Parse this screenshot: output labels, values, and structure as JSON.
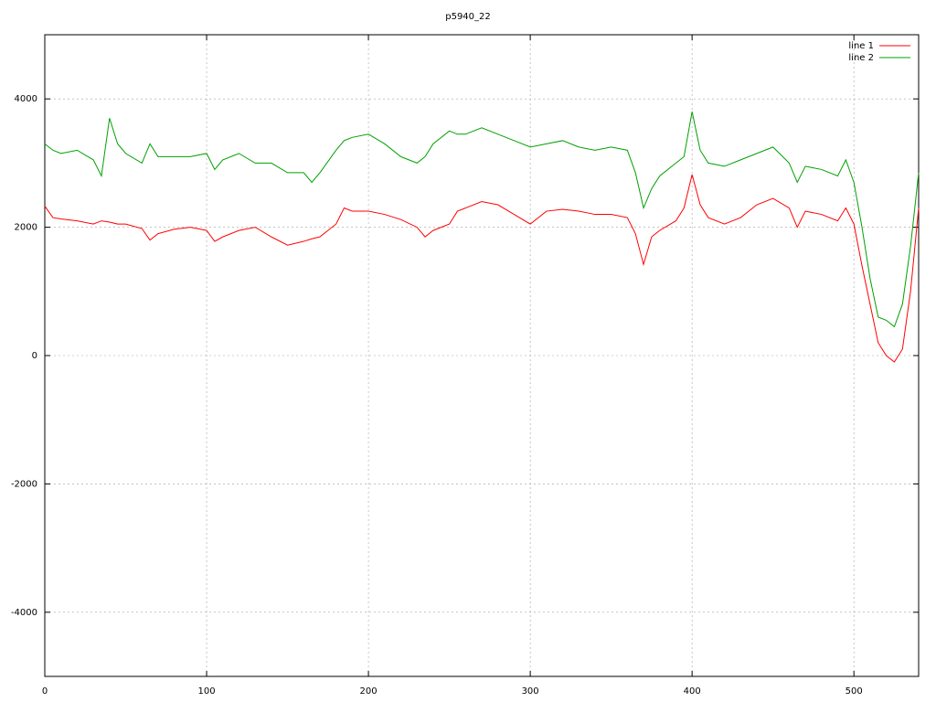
{
  "chart_data": {
    "type": "line",
    "title": "p5940_22",
    "x": [
      0,
      5,
      10,
      20,
      30,
      35,
      40,
      45,
      50,
      60,
      65,
      70,
      80,
      90,
      100,
      105,
      110,
      120,
      130,
      140,
      150,
      160,
      165,
      170,
      180,
      185,
      190,
      200,
      210,
      220,
      230,
      235,
      240,
      250,
      255,
      260,
      270,
      280,
      290,
      300,
      310,
      320,
      330,
      340,
      350,
      360,
      365,
      370,
      375,
      380,
      390,
      395,
      400,
      405,
      410,
      420,
      430,
      440,
      450,
      460,
      465,
      470,
      480,
      490,
      495,
      500,
      505,
      510,
      515,
      520,
      525,
      530,
      535,
      540
    ],
    "series": [
      {
        "name": "line 1",
        "color": "#ff0000",
        "values": [
          2330,
          2150,
          2130,
          2100,
          2050,
          2100,
          2080,
          2050,
          2050,
          1980,
          1800,
          1900,
          1970,
          2000,
          1950,
          1780,
          1850,
          1950,
          2000,
          1850,
          1720,
          1780,
          1820,
          1850,
          2050,
          2300,
          2250,
          2250,
          2200,
          2120,
          2000,
          1850,
          1950,
          2050,
          2250,
          2300,
          2400,
          2350,
          2200,
          2050,
          2250,
          2280,
          2250,
          2200,
          2200,
          2150,
          1900,
          1420,
          1850,
          1950,
          2100,
          2300,
          2820,
          2350,
          2150,
          2050,
          2150,
          2350,
          2450,
          2300,
          2000,
          2250,
          2200,
          2100,
          2300,
          2050,
          1400,
          800,
          200,
          0,
          -100,
          100,
          1000,
          2300
        ]
      },
      {
        "name": "line 2",
        "color": "#00a000",
        "values": [
          3300,
          3200,
          3150,
          3200,
          3050,
          2800,
          3700,
          3300,
          3150,
          3000,
          3300,
          3100,
          3100,
          3100,
          3150,
          2900,
          3050,
          3150,
          3000,
          3000,
          2850,
          2850,
          2700,
          2850,
          3200,
          3350,
          3400,
          3450,
          3300,
          3100,
          3000,
          3100,
          3300,
          3500,
          3450,
          3450,
          3550,
          3450,
          3350,
          3250,
          3300,
          3350,
          3250,
          3200,
          3250,
          3200,
          2850,
          2300,
          2600,
          2800,
          3000,
          3100,
          3800,
          3200,
          3000,
          2950,
          3050,
          3150,
          3250,
          3000,
          2700,
          2950,
          2900,
          2800,
          3050,
          2700,
          2000,
          1200,
          600,
          550,
          450,
          800,
          1700,
          2850
        ]
      }
    ],
    "xlim": [
      0,
      540
    ],
    "ylim": [
      -5000,
      5000
    ],
    "xticks": [
      0,
      100,
      200,
      300,
      400,
      500
    ],
    "yticks": [
      -4000,
      -2000,
      0,
      2000,
      4000
    ],
    "grid": true,
    "legend": "top-right"
  }
}
